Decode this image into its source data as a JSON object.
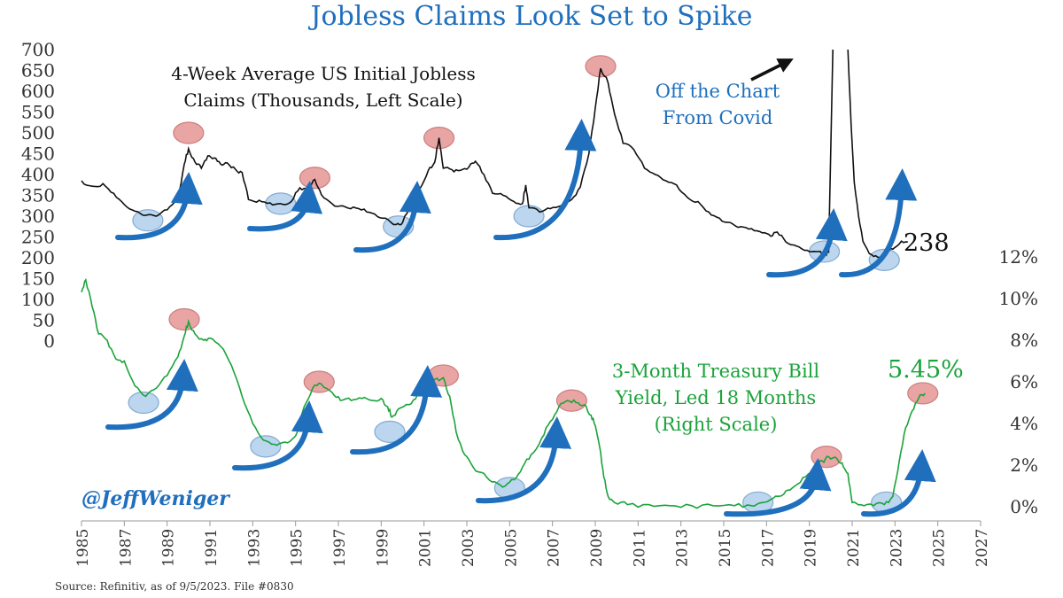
{
  "title": "Jobless Claims Look Set to Spike",
  "source": "Source: Refinitiv, as of 9/5/2023. File #0830",
  "handle": "@JeffWeniger",
  "colors": {
    "title": "#1f6fbd",
    "claims_line": "#111111",
    "bill_line": "#1aa33a",
    "annotation_blue": "#1f6fbd",
    "peak_marker": "#e8a0a0",
    "trough_marker": "#b8d4ee",
    "arrow": "#1f6fbd",
    "axis_text": "#333333"
  },
  "chart_data": {
    "type": "line",
    "title": "Jobless Claims Look Set to Spike",
    "x_axis": {
      "ticks": [
        "1985",
        "1987",
        "1989",
        "1991",
        "1993",
        "1995",
        "1997",
        "1999",
        "2001",
        "2003",
        "2005",
        "2007",
        "2009",
        "2011",
        "2013",
        "2015",
        "2017",
        "2019",
        "2021",
        "2023",
        "2025",
        "2027"
      ],
      "range": [
        1985,
        2027
      ]
    },
    "left_axis": {
      "label": "",
      "ticks": [
        "0",
        "50",
        "100",
        "150",
        "200",
        "250",
        "300",
        "350",
        "400",
        "450",
        "500",
        "550",
        "600",
        "650",
        "700"
      ],
      "range": [
        0,
        700
      ]
    },
    "right_axis": {
      "label": "",
      "ticks": [
        "0%",
        "2%",
        "4%",
        "6%",
        "8%",
        "10%",
        "12%"
      ],
      "range": [
        0,
        12
      ]
    },
    "annotations": {
      "claims_label_line1": "4-Week Average US Initial Jobless",
      "claims_label_line2": "Claims (Thousands, Left Scale)",
      "covid_line1": "Off the Chart",
      "covid_line2": "From Covid",
      "claims_latest": "238",
      "bill_label_line1": "3-Month Treasury Bill",
      "bill_label_line2": "Yield, Led 18 Months",
      "bill_label_line3": "(Right Scale)",
      "bill_latest": "5.45%"
    },
    "series": [
      {
        "name": "4-Week Average US Initial Jobless Claims (Thousands, Left Scale)",
        "axis": "left",
        "points": [
          [
            1985.0,
            385
          ],
          [
            1985.5,
            372
          ],
          [
            1986.0,
            378
          ],
          [
            1986.5,
            355
          ],
          [
            1987.0,
            328
          ],
          [
            1987.5,
            312
          ],
          [
            1988.0,
            302
          ],
          [
            1988.5,
            300
          ],
          [
            1989.0,
            315
          ],
          [
            1989.5,
            340
          ],
          [
            1989.8,
            425
          ],
          [
            1990.0,
            462
          ],
          [
            1990.3,
            430
          ],
          [
            1990.6,
            415
          ],
          [
            1990.9,
            445
          ],
          [
            1991.2,
            440
          ],
          [
            1991.5,
            425
          ],
          [
            1991.8,
            428
          ],
          [
            1992.2,
            412
          ],
          [
            1992.5,
            405
          ],
          [
            1992.8,
            340
          ],
          [
            1993.3,
            338
          ],
          [
            1993.8,
            332
          ],
          [
            1994.3,
            330
          ],
          [
            1994.8,
            335
          ],
          [
            1995.2,
            368
          ],
          [
            1995.6,
            368
          ],
          [
            1995.9,
            388
          ],
          [
            1996.2,
            352
          ],
          [
            1996.7,
            330
          ],
          [
            1997.2,
            325
          ],
          [
            1997.7,
            322
          ],
          [
            1998.2,
            317
          ],
          [
            1998.7,
            305
          ],
          [
            1999.2,
            295
          ],
          [
            1999.7,
            280
          ],
          [
            2000.0,
            285
          ],
          [
            2000.4,
            330
          ],
          [
            2000.8,
            365
          ],
          [
            2001.2,
            410
          ],
          [
            2001.5,
            430
          ],
          [
            2001.7,
            488
          ],
          [
            2001.9,
            415
          ],
          [
            2002.3,
            412
          ],
          [
            2002.7,
            410
          ],
          [
            2003.1,
            418
          ],
          [
            2003.4,
            432
          ],
          [
            2003.8,
            400
          ],
          [
            2004.2,
            355
          ],
          [
            2004.7,
            350
          ],
          [
            2005.2,
            335
          ],
          [
            2005.6,
            330
          ],
          [
            2005.75,
            375
          ],
          [
            2005.9,
            320
          ],
          [
            2006.4,
            310
          ],
          [
            2006.9,
            318
          ],
          [
            2007.4,
            325
          ],
          [
            2007.9,
            340
          ],
          [
            2008.3,
            370
          ],
          [
            2008.7,
            450
          ],
          [
            2009.0,
            560
          ],
          [
            2009.25,
            655
          ],
          [
            2009.6,
            620
          ],
          [
            2009.9,
            545
          ],
          [
            2010.3,
            475
          ],
          [
            2010.8,
            460
          ],
          [
            2011.3,
            415
          ],
          [
            2011.8,
            400
          ],
          [
            2012.3,
            385
          ],
          [
            2012.8,
            375
          ],
          [
            2013.3,
            345
          ],
          [
            2013.8,
            335
          ],
          [
            2014.3,
            310
          ],
          [
            2014.8,
            295
          ],
          [
            2015.3,
            285
          ],
          [
            2015.8,
            275
          ],
          [
            2016.3,
            270
          ],
          [
            2016.8,
            260
          ],
          [
            2017.2,
            252
          ],
          [
            2017.5,
            262
          ],
          [
            2017.9,
            238
          ],
          [
            2018.4,
            228
          ],
          [
            2018.9,
            218
          ],
          [
            2019.3,
            215
          ],
          [
            2019.7,
            213
          ],
          [
            2019.9,
            212
          ]
        ]
      },
      {
        "name": "3-Month Treasury Bill Yield, Led 18 Months (Right Scale)",
        "axis": "right",
        "points": [
          [
            1985.0,
            10.3
          ],
          [
            1985.2,
            10.9
          ],
          [
            1985.5,
            9.6
          ],
          [
            1985.8,
            8.3
          ],
          [
            1986.2,
            8.0
          ],
          [
            1986.6,
            7.1
          ],
          [
            1987.0,
            7.0
          ],
          [
            1987.5,
            5.8
          ],
          [
            1988.0,
            5.3
          ],
          [
            1988.5,
            5.7
          ],
          [
            1989.0,
            6.3
          ],
          [
            1989.5,
            7.2
          ],
          [
            1989.8,
            8.2
          ],
          [
            1990.0,
            8.9
          ],
          [
            1990.3,
            8.3
          ],
          [
            1990.7,
            8.0
          ],
          [
            1991.0,
            8.1
          ],
          [
            1991.5,
            7.7
          ],
          [
            1992.0,
            6.8
          ],
          [
            1992.5,
            5.3
          ],
          [
            1993.0,
            4.0
          ],
          [
            1993.5,
            3.2
          ],
          [
            1994.0,
            3.0
          ],
          [
            1994.5,
            3.1
          ],
          [
            1995.0,
            3.4
          ],
          [
            1995.4,
            4.8
          ],
          [
            1995.8,
            5.7
          ],
          [
            1996.2,
            5.9
          ],
          [
            1996.7,
            5.5
          ],
          [
            1997.1,
            5.1
          ],
          [
            1997.6,
            5.1
          ],
          [
            1998.1,
            5.2
          ],
          [
            1998.6,
            5.1
          ],
          [
            1999.0,
            5.2
          ],
          [
            1999.3,
            4.8
          ],
          [
            1999.5,
            4.3
          ],
          [
            1999.8,
            4.7
          ],
          [
            2000.3,
            4.9
          ],
          [
            2000.7,
            5.4
          ],
          [
            2001.1,
            5.9
          ],
          [
            2001.5,
            6.1
          ],
          [
            2001.9,
            6.2
          ],
          [
            2002.2,
            5.3
          ],
          [
            2002.5,
            3.6
          ],
          [
            2002.9,
            2.5
          ],
          [
            2003.3,
            1.9
          ],
          [
            2003.8,
            1.6
          ],
          [
            2004.3,
            1.2
          ],
          [
            2004.8,
            1.0
          ],
          [
            2005.2,
            1.3
          ],
          [
            2005.6,
            1.9
          ],
          [
            2006.0,
            2.5
          ],
          [
            2006.5,
            3.3
          ],
          [
            2006.9,
            4.1
          ],
          [
            2007.3,
            4.8
          ],
          [
            2007.7,
            5.1
          ],
          [
            2008.1,
            5.0
          ],
          [
            2008.5,
            4.9
          ],
          [
            2008.8,
            4.4
          ],
          [
            2009.0,
            3.9
          ],
          [
            2009.2,
            2.9
          ],
          [
            2009.4,
            1.4
          ],
          [
            2009.6,
            0.5
          ],
          [
            2009.9,
            0.2
          ],
          [
            2010.5,
            0.1
          ],
          [
            2011.5,
            0.1
          ],
          [
            2012.5,
            0.05
          ],
          [
            2013.5,
            0.05
          ],
          [
            2014.5,
            0.05
          ],
          [
            2015.5,
            0.05
          ],
          [
            2016.3,
            0.05
          ],
          [
            2016.8,
            0.2
          ],
          [
            2017.3,
            0.4
          ],
          [
            2017.8,
            0.6
          ],
          [
            2018.2,
            0.9
          ],
          [
            2018.7,
            1.4
          ],
          [
            2019.2,
            1.8
          ],
          [
            2019.6,
            2.2
          ],
          [
            2019.9,
            2.4
          ],
          [
            2020.3,
            2.3
          ],
          [
            2020.6,
            1.9
          ],
          [
            2020.8,
            1.6
          ],
          [
            2021.0,
            0.2
          ],
          [
            2021.4,
            0.1
          ],
          [
            2022.0,
            0.05
          ],
          [
            2022.5,
            0.1
          ],
          [
            2022.9,
            0.5
          ],
          [
            2023.2,
            2.2
          ],
          [
            2023.5,
            3.8
          ],
          [
            2023.8,
            4.6
          ],
          [
            2024.1,
            5.2
          ],
          [
            2024.4,
            5.45
          ]
        ]
      }
    ],
    "covid_segment": [
      [
        2019.9,
        212
      ],
      [
        2020.1,
        700
      ]
    ],
    "post_covid_claims": [
      [
        2020.8,
        700
      ],
      [
        2020.95,
        520
      ],
      [
        2021.1,
        380
      ],
      [
        2021.3,
        300
      ],
      [
        2021.5,
        240
      ],
      [
        2021.8,
        210
      ],
      [
        2022.1,
        205
      ],
      [
        2022.4,
        200
      ],
      [
        2022.7,
        215
      ],
      [
        2023.0,
        225
      ],
      [
        2023.3,
        240
      ],
      [
        2023.6,
        238
      ]
    ],
    "peak_markers": [
      {
        "series": "claims",
        "x": 1990.0,
        "y": 500
      },
      {
        "series": "claims",
        "x": 1995.9,
        "y": 392
      },
      {
        "series": "claims",
        "x": 2001.7,
        "y": 488
      },
      {
        "series": "claims",
        "x": 2009.25,
        "y": 660
      },
      {
        "series": "bill",
        "x": 1989.8,
        "y": 9.0
      },
      {
        "series": "bill",
        "x": 1996.1,
        "y": 6.0
      },
      {
        "series": "bill",
        "x": 2001.9,
        "y": 6.3
      },
      {
        "series": "bill",
        "x": 2007.9,
        "y": 5.1
      },
      {
        "series": "bill",
        "x": 2019.8,
        "y": 2.4
      },
      {
        "series": "bill",
        "x": 2024.3,
        "y": 5.45
      }
    ],
    "trough_markers": [
      {
        "series": "claims",
        "x": 1988.1,
        "y": 290
      },
      {
        "series": "claims",
        "x": 1994.3,
        "y": 330
      },
      {
        "series": "claims",
        "x": 1999.8,
        "y": 275
      },
      {
        "series": "claims",
        "x": 2005.9,
        "y": 300
      },
      {
        "series": "claims",
        "x": 2019.7,
        "y": 215
      },
      {
        "series": "claims",
        "x": 2022.5,
        "y": 195
      },
      {
        "series": "bill",
        "x": 1987.9,
        "y": 5.0
      },
      {
        "series": "bill",
        "x": 1993.6,
        "y": 2.9
      },
      {
        "series": "bill",
        "x": 1999.4,
        "y": 3.6
      },
      {
        "series": "bill",
        "x": 2005.0,
        "y": 0.9
      },
      {
        "series": "bill",
        "x": 2016.6,
        "y": 0.2
      },
      {
        "series": "bill",
        "x": 2022.6,
        "y": 0.2
      }
    ]
  }
}
